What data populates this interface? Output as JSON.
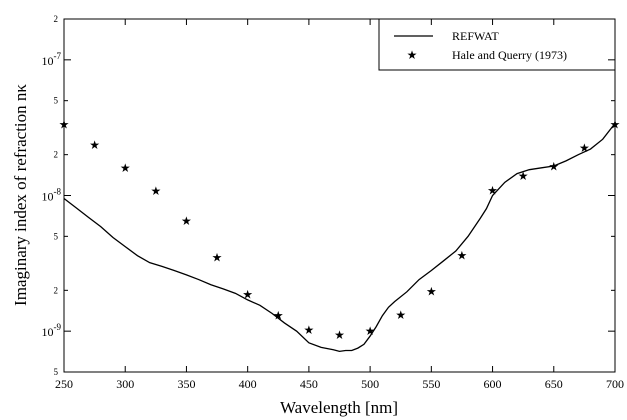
{
  "chart_data": {
    "type": "line",
    "title": "",
    "xlabel": "Wavelength [nm]",
    "ylabel": "Imaginary index of refraction nκ",
    "xlim": [
      250,
      700
    ],
    "ylim": [
      5e-10,
      2e-07
    ],
    "yscale": "log",
    "grid": false,
    "legend_position": "top-right",
    "x_ticks": [
      250,
      300,
      350,
      400,
      450,
      500,
      550,
      600,
      650,
      700
    ],
    "x_tick_labels": [
      "250",
      "300",
      "350",
      "400",
      "450",
      "500",
      "550",
      "600",
      "650",
      "700"
    ],
    "y_major_ticks": [
      {
        "value": 1e-09,
        "base": "10",
        "exp": "-9"
      },
      {
        "value": 1e-08,
        "base": "10",
        "exp": "-8"
      },
      {
        "value": 1e-07,
        "base": "10",
        "exp": "-7"
      }
    ],
    "y_minor_ticks": [
      {
        "value": 5e-10,
        "label": "5"
      },
      {
        "value": 2e-09,
        "label": "2"
      },
      {
        "value": 5e-09,
        "label": "5"
      },
      {
        "value": 2e-08,
        "label": "2"
      },
      {
        "value": 5e-08,
        "label": "5"
      },
      {
        "value": 2e-07,
        "label": "2"
      }
    ],
    "series": [
      {
        "name": "REFWAT",
        "style": "line",
        "x": [
          250,
          260,
          270,
          280,
          290,
          300,
          310,
          320,
          330,
          340,
          350,
          360,
          370,
          380,
          390,
          400,
          410,
          420,
          430,
          440,
          450,
          460,
          470,
          475,
          480,
          485,
          490,
          495,
          500,
          505,
          510,
          515,
          520,
          530,
          540,
          550,
          560,
          570,
          580,
          590,
          595,
          600,
          610,
          620,
          630,
          640,
          650,
          660,
          670,
          680,
          690,
          700
        ],
        "y": [
          9.5e-09,
          8.1e-09,
          6.9e-09,
          5.9e-09,
          4.9e-09,
          4.2e-09,
          3.6e-09,
          3.2e-09,
          3e-09,
          2.8e-09,
          2.6e-09,
          2.4e-09,
          2.2e-09,
          2.05e-09,
          1.9e-09,
          1.7e-09,
          1.55e-09,
          1.35e-09,
          1.15e-09,
          1e-09,
          8.2e-10,
          7.6e-10,
          7.3e-10,
          7.1e-10,
          7.2e-10,
          7.2e-10,
          7.5e-10,
          8e-10,
          9.2e-10,
          1.08e-09,
          1.3e-09,
          1.5e-09,
          1.65e-09,
          1.95e-09,
          2.4e-09,
          2.8e-09,
          3.3e-09,
          3.9e-09,
          5e-09,
          6.8e-09,
          8e-09,
          1e-08,
          1.25e-08,
          1.45e-08,
          1.55e-08,
          1.6e-08,
          1.65e-08,
          1.8e-08,
          2e-08,
          2.2e-08,
          2.6e-08,
          3.4e-08
        ]
      },
      {
        "name": "Hale and Querry (1973)",
        "style": "marker-star",
        "x": [
          250,
          275,
          300,
          325,
          350,
          375,
          400,
          425,
          450,
          475,
          500,
          525,
          550,
          575,
          600,
          625,
          650,
          675,
          700
        ],
        "y": [
          3.35e-08,
          2.35e-08,
          1.6e-08,
          1.08e-08,
          6.5e-09,
          3.5e-09,
          1.86e-09,
          1.3e-09,
          1.02e-09,
          9.35e-10,
          1e-09,
          1.32e-09,
          1.96e-09,
          3.6e-09,
          1.09e-08,
          1.39e-08,
          1.64e-08,
          2.23e-08,
          3.35e-08
        ]
      }
    ],
    "legend": [
      {
        "label": "REFWAT",
        "symbol": "line"
      },
      {
        "label": "Hale and Querry (1973)",
        "symbol": "★"
      }
    ]
  }
}
